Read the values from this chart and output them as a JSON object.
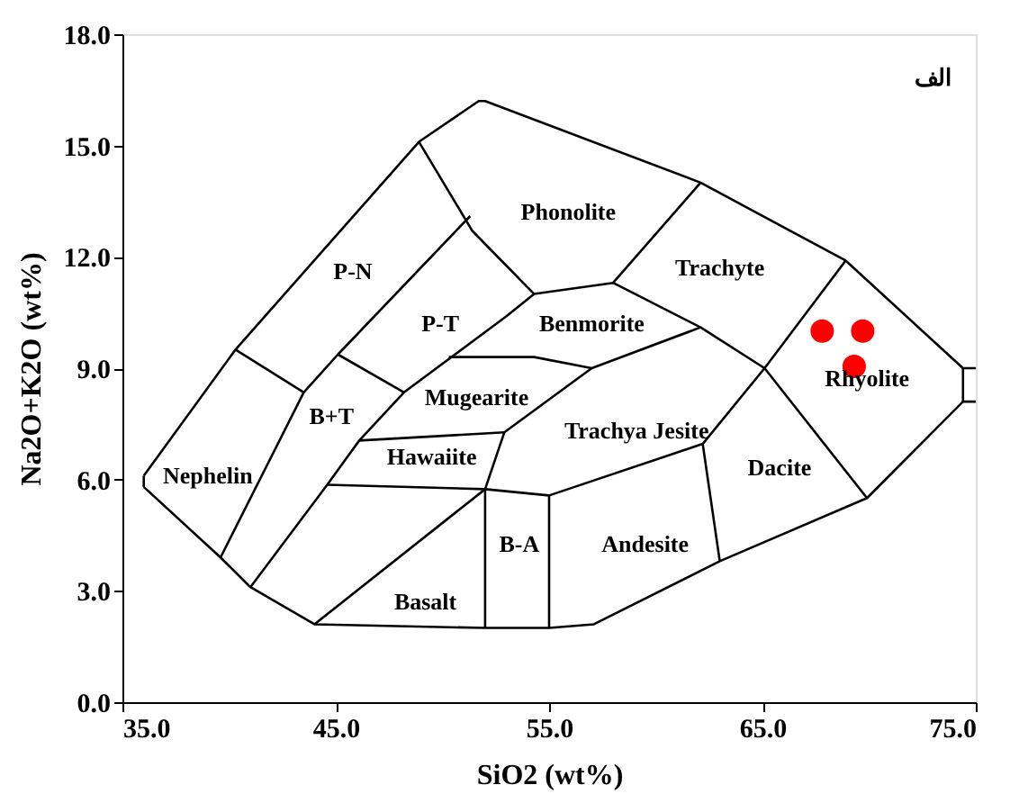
{
  "chart_data": {
    "type": "scatter",
    "xlabel": "SiO2  (wt%)",
    "ylabel": "Na2O+K2O  (wt%)",
    "xlim": [
      35,
      75
    ],
    "ylim": [
      0,
      18
    ],
    "xticks": [
      {
        "value": 35,
        "label": "35.0"
      },
      {
        "value": 45,
        "label": "45.0"
      },
      {
        "value": 55,
        "label": "55.0"
      },
      {
        "value": 65,
        "label": "65.0"
      },
      {
        "value": 75,
        "label": "75.0"
      }
    ],
    "yticks": [
      {
        "value": 0,
        "label": "0.0"
      },
      {
        "value": 3,
        "label": "3.0"
      },
      {
        "value": 6,
        "label": "6.0"
      },
      {
        "value": 9,
        "label": "9.0"
      },
      {
        "value": 12,
        "label": "12.0"
      },
      {
        "value": 15,
        "label": "15.0"
      },
      {
        "value": 18,
        "label": "18.0"
      }
    ],
    "grid": false,
    "series": [
      {
        "color": "#ff0000",
        "marker": "circle",
        "x": [
          67.8,
          69.7,
          69.3
        ],
        "values": [
          10.0,
          10.0,
          9.05
        ]
      },
      {
        "type": "line",
        "color": "#000000",
        "x": [
          36.0,
          40.3,
          48.9,
          51.7,
          52.0,
          62.1,
          68.9,
          74.4,
          75.0
        ],
        "values": [
          6.1,
          9.5,
          15.1,
          16.2,
          16.2,
          14.0,
          11.9,
          9.0,
          9.0
        ]
      },
      {
        "type": "line",
        "color": "#000000",
        "x": [
          36.0,
          39.6,
          41.0,
          44.0,
          52.0,
          55.0,
          57.1,
          63.0,
          69.9,
          74.4,
          75.0
        ],
        "values": [
          5.8,
          3.9,
          3.1,
          2.1,
          2.0,
          2.0,
          2.1,
          3.8,
          5.5,
          8.1,
          8.1
        ]
      },
      {
        "type": "line",
        "color": "#000000",
        "x": [
          36.0,
          36.0
        ],
        "values": [
          5.8,
          6.1
        ]
      },
      {
        "type": "line",
        "color": "#000000",
        "x": [
          74.4,
          74.4
        ],
        "values": [
          8.1,
          9.0
        ]
      },
      {
        "type": "line",
        "color": "#000000",
        "x": [
          40.3,
          43.5
        ],
        "values": [
          9.5,
          8.35
        ]
      },
      {
        "type": "line",
        "color": "#000000",
        "x": [
          39.6,
          43.5,
          45.1,
          51.3
        ],
        "values": [
          3.9,
          8.35,
          9.37,
          13.1
        ]
      },
      {
        "type": "line",
        "color": "#000000",
        "x": [
          48.9,
          51.4,
          54.3
        ],
        "values": [
          15.1,
          12.7,
          11.0
        ]
      },
      {
        "type": "line",
        "color": "#000000",
        "x": [
          45.1,
          48.2,
          53.0,
          54.3
        ],
        "values": [
          9.37,
          8.35,
          10.4,
          11.0
        ]
      },
      {
        "type": "line",
        "color": "#000000",
        "x": [
          54.3,
          58.0,
          62.1
        ],
        "values": [
          11.0,
          11.3,
          14.0
        ]
      },
      {
        "type": "line",
        "color": "#000000",
        "x": [
          58.0,
          62.1,
          65.1,
          69.9
        ],
        "values": [
          11.3,
          10.1,
          9.0,
          5.5
        ]
      },
      {
        "type": "line",
        "color": "#000000",
        "x": [
          41.0,
          44.6,
          46.1,
          48.2
        ],
        "values": [
          3.1,
          5.86,
          7.05,
          8.35
        ]
      },
      {
        "type": "line",
        "color": "#000000",
        "x": [
          50.3,
          54.3,
          57.0,
          62.1
        ],
        "values": [
          9.3,
          9.3,
          9.0,
          10.1
        ]
      },
      {
        "type": "line",
        "color": "#000000",
        "x": [
          52.0,
          52.0,
          52.9,
          57.0
        ],
        "values": [
          2.0,
          5.74,
          7.27,
          9.0
        ]
      },
      {
        "type": "line",
        "color": "#000000",
        "x": [
          46.1,
          52.9
        ],
        "values": [
          7.05,
          7.27
        ]
      },
      {
        "type": "line",
        "color": "#000000",
        "x": [
          44.6,
          52.0,
          55.0,
          62.2,
          65.1,
          68.9
        ],
        "values": [
          5.86,
          5.74,
          5.57,
          6.96,
          9.0,
          11.9
        ]
      },
      {
        "type": "line",
        "color": "#000000",
        "x": [
          44.0,
          52.0
        ],
        "values": [
          2.1,
          5.74
        ]
      },
      {
        "type": "line",
        "color": "#000000",
        "x": [
          55.0,
          55.0
        ],
        "values": [
          2.0,
          5.57
        ]
      },
      {
        "type": "line",
        "color": "#000000",
        "x": [
          62.2,
          63.0
        ],
        "values": [
          6.96,
          3.8
        ]
      }
    ],
    "annotations": [
      "Nephelin",
      "P-N",
      "P-T",
      "B+T",
      "Mugearite",
      "Hawaiite",
      "Phonolite",
      "Trachyte",
      "Benmorite",
      "Trachya Jesite",
      "Rhyolite",
      "Dacite",
      "B-A",
      "Andesite",
      "Basalt",
      "الف"
    ]
  }
}
